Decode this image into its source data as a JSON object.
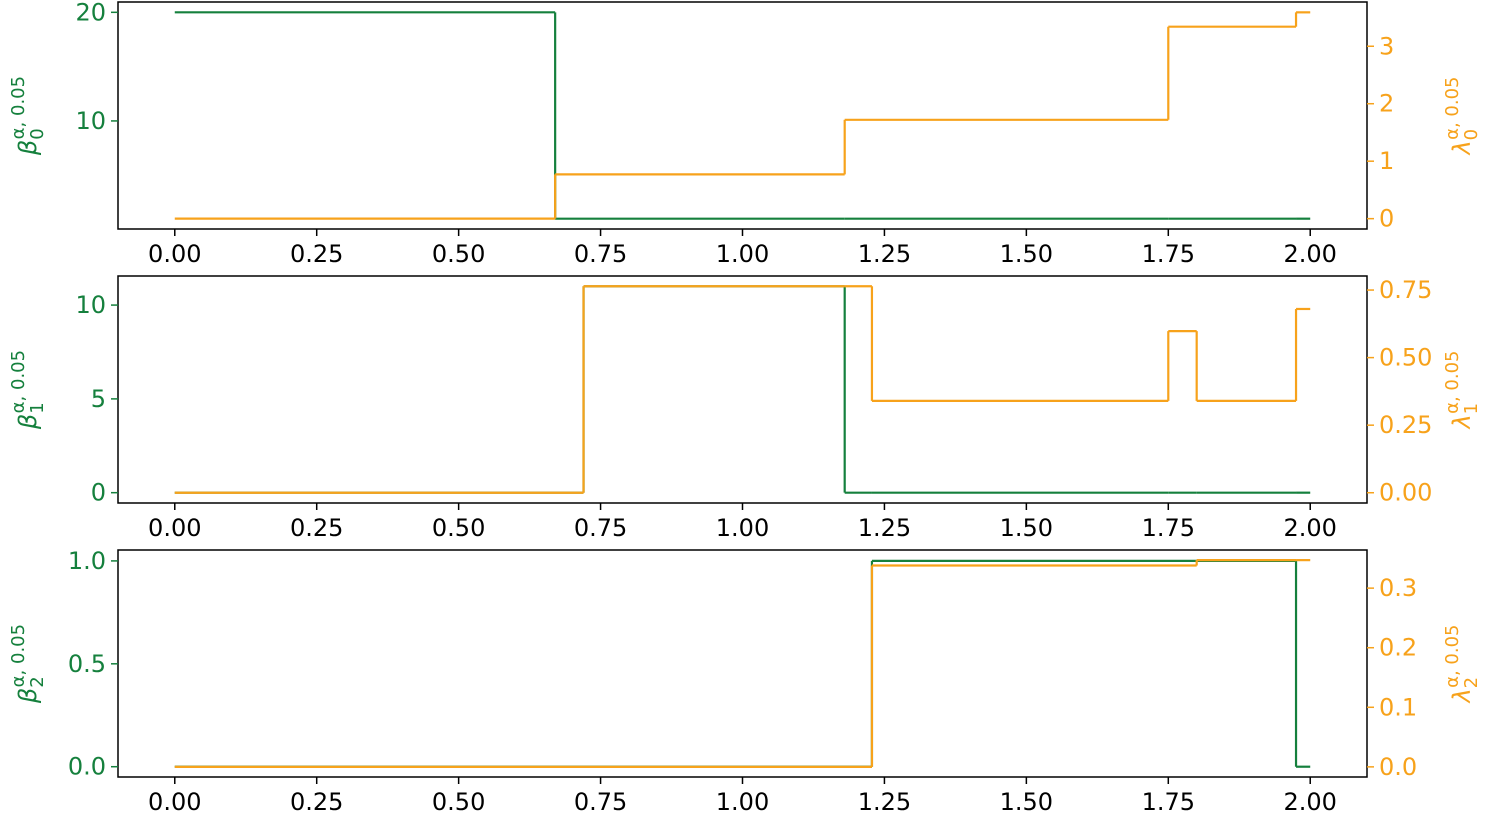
{
  "chart_data": [
    {
      "type": "step",
      "x": [
        0,
        0.67,
        1.18,
        1.75,
        1.975,
        2.0
      ],
      "series": [
        {
          "color": "#15803d",
          "values": [
            20,
            1,
            1,
            1,
            1,
            1
          ]
        },
        {
          "color": "#f7a21b",
          "axis": "y2",
          "values": [
            0,
            0.77,
            1.72,
            3.34,
            3.59,
            3.59
          ]
        }
      ],
      "ylabel": {
        "symbol": "β",
        "subscript": "0",
        "superscript": "α, 0.05"
      },
      "y2label": {
        "symbol": "λ",
        "subscript": "0",
        "superscript": "α, 0.05"
      },
      "xlim": [
        -0.1,
        2.1
      ],
      "xticks": [
        {
          "value": 0,
          "label": "0.00"
        },
        {
          "value": 0.25,
          "label": "0.25"
        },
        {
          "value": 0.5,
          "label": "0.50"
        },
        {
          "value": 0.75,
          "label": "0.75"
        },
        {
          "value": 1,
          "label": "1.00"
        },
        {
          "value": 1.25,
          "label": "1.25"
        },
        {
          "value": 1.5,
          "label": "1.50"
        },
        {
          "value": 1.75,
          "label": "1.75"
        },
        {
          "value": 2,
          "label": "2.00"
        }
      ],
      "ylim": [
        0.05,
        20.95
      ],
      "yticks": [
        10,
        20
      ],
      "y2lim": [
        -0.18,
        3.77
      ],
      "y2ticks": [
        0,
        1,
        2,
        3
      ]
    },
    {
      "type": "step",
      "x": [
        0,
        0.72,
        1.18,
        1.228,
        1.75,
        1.8,
        1.975,
        2.0
      ],
      "series": [
        {
          "color": "#15803d",
          "values": [
            0,
            11,
            0,
            0,
            0,
            0,
            0,
            0
          ]
        },
        {
          "color": "#f7a21b",
          "axis": "y2",
          "values": [
            0,
            0.764,
            0.764,
            0.34,
            0.598,
            0.34,
            0.68,
            0.68
          ]
        }
      ],
      "ylabel": {
        "symbol": "β",
        "subscript": "1",
        "superscript": "α, 0.05"
      },
      "y2label": {
        "symbol": "λ",
        "subscript": "1",
        "superscript": "α, 0.05"
      },
      "xlim": [
        -0.1,
        2.1
      ],
      "xticks": [
        {
          "value": 0,
          "label": "0.00"
        },
        {
          "value": 0.25,
          "label": "0.25"
        },
        {
          "value": 0.5,
          "label": "0.50"
        },
        {
          "value": 0.75,
          "label": "0.75"
        },
        {
          "value": 1,
          "label": "1.00"
        },
        {
          "value": 1.25,
          "label": "1.25"
        },
        {
          "value": 1.5,
          "label": "1.50"
        },
        {
          "value": 1.75,
          "label": "1.75"
        },
        {
          "value": 2,
          "label": "2.00"
        }
      ],
      "ylim": [
        -0.55,
        11.55
      ],
      "yticks": [
        0,
        5,
        10
      ],
      "y2lim": [
        -0.038,
        0.802
      ],
      "y2ticks": [
        {
          "value": 0,
          "label": "0.00"
        },
        {
          "value": 0.25,
          "label": "0.25"
        },
        {
          "value": 0.5,
          "label": "0.50"
        },
        {
          "value": 0.75,
          "label": "0.75"
        }
      ]
    },
    {
      "type": "step",
      "x": [
        0,
        1.228,
        1.8,
        1.975,
        2.0
      ],
      "series": [
        {
          "color": "#15803d",
          "values": [
            0,
            1,
            1,
            0,
            0
          ]
        },
        {
          "color": "#f7a21b",
          "axis": "y2",
          "values": [
            0,
            0.338,
            0.347,
            0.347,
            0.347
          ]
        }
      ],
      "ylabel": {
        "symbol": "β",
        "subscript": "2",
        "superscript": "α, 0.05"
      },
      "y2label": {
        "symbol": "λ",
        "subscript": "2",
        "superscript": "α, 0.05"
      },
      "xlim": [
        -0.1,
        2.1
      ],
      "xticks": [
        {
          "value": 0,
          "label": "0.00"
        },
        {
          "value": 0.25,
          "label": "0.25"
        },
        {
          "value": 0.5,
          "label": "0.50"
        },
        {
          "value": 0.75,
          "label": "0.75"
        },
        {
          "value": 1,
          "label": "1.00"
        },
        {
          "value": 1.25,
          "label": "1.25"
        },
        {
          "value": 1.5,
          "label": "1.50"
        },
        {
          "value": 1.75,
          "label": "1.75"
        },
        {
          "value": 2,
          "label": "2.00"
        }
      ],
      "ylim": [
        -0.05,
        1.053
      ],
      "yticks": [
        {
          "value": 0,
          "label": "0.0"
        },
        {
          "value": 0.5,
          "label": "0.5"
        },
        {
          "value": 1,
          "label": "1.0"
        }
      ],
      "y2lim": [
        -0.017,
        0.364
      ],
      "y2ticks": [
        {
          "value": 0,
          "label": "0.0"
        },
        {
          "value": 0.1,
          "label": "0.1"
        },
        {
          "value": 0.2,
          "label": "0.2"
        },
        {
          "value": 0.3,
          "label": "0.3"
        }
      ]
    }
  ]
}
